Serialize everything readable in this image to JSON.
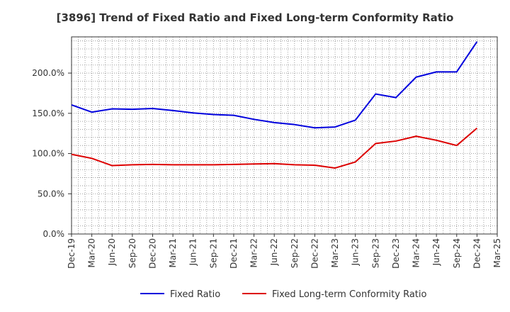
{
  "chart_data": {
    "type": "line",
    "title": "[3896]  Trend of Fixed Ratio and Fixed Long-term Conformity Ratio",
    "xlabel": "",
    "ylabel": "",
    "x": [
      "Dec-19",
      "Mar-20",
      "Jun-20",
      "Sep-20",
      "Dec-20",
      "Mar-21",
      "Jun-21",
      "Sep-21",
      "Dec-21",
      "Mar-22",
      "Jun-22",
      "Sep-22",
      "Dec-22",
      "Mar-23",
      "Jun-23",
      "Sep-23",
      "Dec-23",
      "Mar-24",
      "Jun-24",
      "Sep-24",
      "Dec-24",
      "Mar-25"
    ],
    "ylim": [
      0,
      245
    ],
    "yticks": [
      0,
      50,
      100,
      150,
      200
    ],
    "ytick_labels": [
      "0.0%",
      "50.0%",
      "100.0%",
      "150.0%",
      "200.0%"
    ],
    "grid": true,
    "legend_position": "bottom",
    "series": [
      {
        "name": "Fixed Ratio",
        "color": "#0000dd",
        "values": [
          160.5,
          151.5,
          155.5,
          155.0,
          156.0,
          153.5,
          150.5,
          148.5,
          147.5,
          142.5,
          138.5,
          136.0,
          132.0,
          133.0,
          141.5,
          174.0,
          169.5,
          195.0,
          201.5,
          201.5,
          239.0,
          null
        ]
      },
      {
        "name": "Fixed Long-term Conformity Ratio",
        "color": "#dd0000",
        "values": [
          99.0,
          94.0,
          85.0,
          86.0,
          86.5,
          86.0,
          86.0,
          86.0,
          86.5,
          87.0,
          87.5,
          86.0,
          85.5,
          82.0,
          89.5,
          112.5,
          115.5,
          121.5,
          116.5,
          110.0,
          131.5,
          null
        ]
      }
    ]
  }
}
